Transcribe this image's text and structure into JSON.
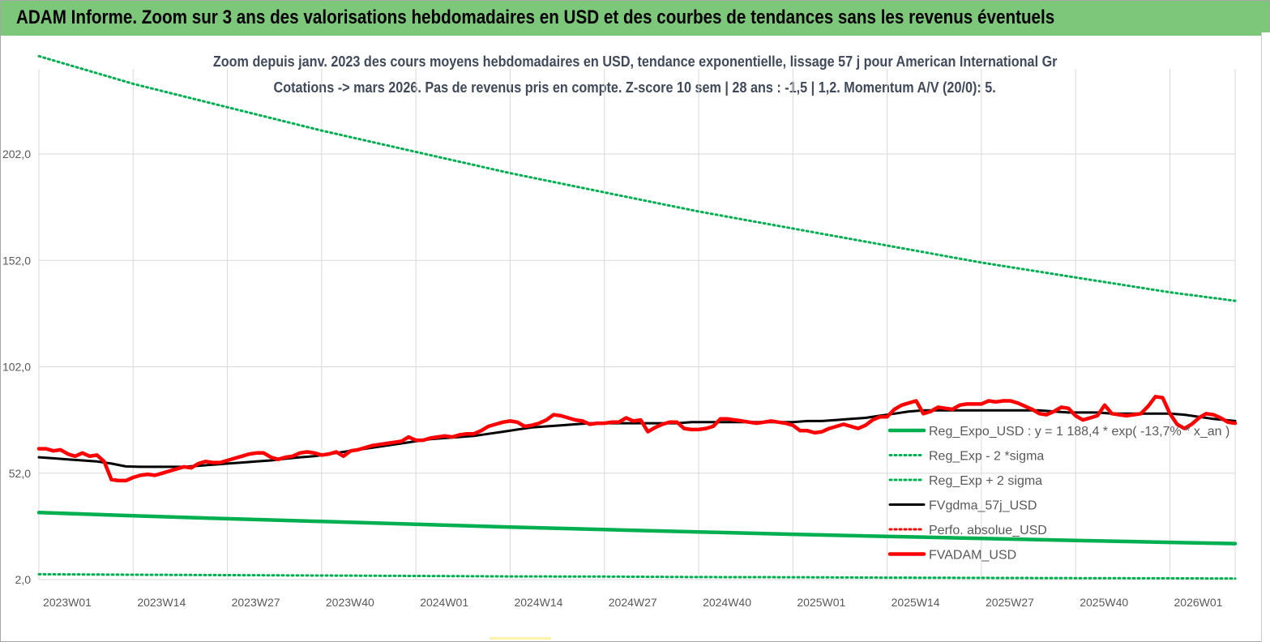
{
  "banner": {
    "title": "ADAM Informe. Zoom sur 3 ans des valorisations hebdomadaires en USD et des courbes de tendances sans les revenus éventuels"
  },
  "chart": {
    "title_line1": "Zoom depuis janv. 2023 des cours moyens hebdomadaires en USD, tendance exponentielle, lissage 57 j pour American International Gr",
    "title_line2": "Cotations -> mars 2026. Pas de revenus pris en compte. Z-score 10 sem | 28 ans : -1,5 | 1,2. Momentum A/V (20/0): 5."
  },
  "colors": {
    "banner": "#7dc77a",
    "reg_expo": "#00b050",
    "fvgdma": "#000000",
    "fvadam": "#ff0000",
    "perfo": "#ff0000",
    "grid": "#d9d9d9"
  },
  "chart_data": {
    "type": "line",
    "ylim": [
      2,
      242
    ],
    "y_ticks": [
      "2,0",
      "52,0",
      "102,0",
      "152,0",
      "202,0"
    ],
    "y_tick_values": [
      2,
      52,
      102,
      152,
      202
    ],
    "x_ticks": [
      "2023W01",
      "2023W14",
      "2023W27",
      "2023W40",
      "2024W01",
      "2024W14",
      "2024W27",
      "2024W40",
      "2025W01",
      "2025W14",
      "2025W27",
      "2025W40",
      "2026W01"
    ],
    "grid": true,
    "legend_position": "right",
    "series": [
      {
        "name": "Reg_Expo_USD : y = 1 188,4 * exp( -13,7% * x_an )",
        "style": "solid-thick",
        "color": "#00b050",
        "x": [
          0,
          13,
          26,
          39,
          52,
          65,
          78,
          91,
          104,
          117,
          130,
          143,
          156,
          165
        ],
        "values": [
          33.5,
          32.0,
          30.6,
          29.3,
          28.0,
          26.7,
          25.5,
          24.4,
          23.3,
          22.3,
          21.3,
          20.4,
          19.5,
          18.9
        ]
      },
      {
        "name": "Reg_Exp - 2 *sigma",
        "style": "dotted",
        "color": "#00b050",
        "x": [
          0,
          13,
          26,
          39,
          52,
          65,
          78,
          91,
          104,
          117,
          130,
          143,
          156,
          165
        ],
        "values": [
          4.5,
          4.3,
          4.1,
          3.9,
          3.7,
          3.5,
          3.4,
          3.2,
          3.1,
          2.9,
          2.8,
          2.7,
          2.6,
          2.5
        ]
      },
      {
        "name": "Reg_Exp + 2 sigma",
        "style": "dotted",
        "color": "#00b050",
        "x": [
          0,
          13,
          26,
          39,
          52,
          65,
          78,
          91,
          104,
          117,
          130,
          143,
          156,
          165
        ],
        "values": [
          248,
          235,
          224,
          213,
          203,
          193,
          184,
          175,
          167,
          159,
          151,
          144,
          137,
          133
        ]
      },
      {
        "name": "FVgdma_57j_USD",
        "style": "solid",
        "color": "#000000",
        "x": [
          0,
          2,
          4,
          6,
          8,
          10,
          12,
          14,
          16,
          18,
          20,
          22,
          24,
          26,
          28,
          30,
          32,
          34,
          36,
          38,
          40,
          42,
          44,
          46,
          48,
          50,
          52,
          54,
          56,
          58,
          60,
          62,
          64,
          66,
          68,
          70,
          72,
          74,
          76,
          78,
          80,
          82,
          84,
          86,
          88,
          90,
          92,
          94,
          96,
          98,
          100,
          102,
          104,
          106,
          108,
          110,
          112,
          114,
          116,
          118,
          120,
          122,
          124,
          126,
          128,
          130,
          132,
          134,
          136,
          138,
          140,
          142,
          144,
          146,
          148,
          150,
          152,
          154,
          156,
          158,
          160,
          162,
          165
        ],
        "values": [
          59.5,
          59,
          58.5,
          58,
          57.5,
          56.5,
          55.2,
          55,
          55,
          55,
          55,
          55.5,
          56,
          56.5,
          57,
          57.5,
          58,
          58.8,
          59.5,
          60,
          61,
          62,
          63,
          64,
          65,
          66,
          67,
          68,
          68.5,
          69,
          69.5,
          70.5,
          71.5,
          72.5,
          73.5,
          74,
          74.5,
          75,
          75.5,
          75.5,
          75.5,
          75.5,
          75.5,
          75.5,
          75.5,
          76,
          76,
          76,
          76,
          76,
          76,
          76,
          76,
          76.5,
          76.5,
          77,
          77.5,
          78,
          79,
          80,
          81,
          81.5,
          81.5,
          81.5,
          81.5,
          81.5,
          81.5,
          81.5,
          81.5,
          81.5,
          81,
          80.5,
          80.5,
          80.5,
          80,
          80,
          80,
          80,
          80,
          79.5,
          78.5,
          77.5,
          76.5
        ]
      },
      {
        "name": "Perfo. absolue_USD",
        "style": "dotted",
        "color": "#ff0000",
        "x": [],
        "values": []
      },
      {
        "name": "FVADAM_USD",
        "style": "solid-thick",
        "color": "#ff0000",
        "x": [
          0,
          1,
          2,
          3,
          4,
          5,
          6,
          7,
          8,
          9,
          10,
          11,
          12,
          13,
          14,
          15,
          16,
          17,
          18,
          19,
          20,
          21,
          22,
          23,
          24,
          25,
          26,
          27,
          28,
          29,
          30,
          31,
          32,
          33,
          34,
          35,
          36,
          37,
          38,
          39,
          40,
          41,
          42,
          43,
          44,
          45,
          46,
          47,
          48,
          49,
          50,
          51,
          52,
          53,
          54,
          55,
          56,
          57,
          58,
          59,
          60,
          61,
          62,
          63,
          64,
          65,
          66,
          67,
          68,
          69,
          70,
          71,
          72,
          73,
          74,
          75,
          76,
          77,
          78,
          79,
          80,
          81,
          82,
          83,
          84,
          85,
          86,
          87,
          88,
          89,
          90,
          91,
          92,
          93,
          94,
          95,
          96,
          97,
          98,
          99,
          100,
          101,
          102,
          103,
          104,
          105,
          106,
          107,
          108,
          109,
          110,
          111,
          112,
          113,
          114,
          115,
          116,
          117,
          118,
          119,
          120,
          121,
          122,
          123,
          124,
          125,
          126,
          127,
          128,
          129,
          130,
          131,
          132,
          133,
          134,
          135,
          136,
          137,
          138,
          139,
          140,
          141,
          142,
          143,
          144,
          145,
          146,
          147,
          148,
          149,
          150,
          151,
          152,
          153,
          154,
          155,
          156,
          157,
          158,
          159,
          160,
          161,
          162,
          163,
          164,
          165
        ],
        "values": [
          63.5,
          63.5,
          62.5,
          63,
          61,
          60,
          61.5,
          60,
          60.5,
          57.5,
          49,
          48.5,
          48.5,
          50,
          51,
          51.5,
          51,
          52,
          53,
          54,
          55,
          54.5,
          56.5,
          57.5,
          57,
          57,
          58,
          59,
          60,
          61,
          61.5,
          61.5,
          59.5,
          58.5,
          59.5,
          60,
          61.5,
          62,
          61.5,
          60.5,
          61,
          62,
          60,
          62.5,
          63,
          64,
          65,
          65.5,
          66,
          66.5,
          67,
          69,
          67.5,
          67.5,
          68.5,
          69,
          69.5,
          69,
          70,
          70.5,
          70.5,
          72,
          74,
          75,
          76,
          76.5,
          76,
          74,
          74.5,
          75.5,
          77,
          79.5,
          79,
          78,
          77,
          76.5,
          75,
          75.5,
          75.5,
          76,
          76,
          78,
          76.5,
          77,
          71.5,
          73.5,
          75,
          76,
          76,
          73,
          72.5,
          72.5,
          73,
          74,
          77.5,
          77.5,
          77,
          76.5,
          76,
          75.5,
          76,
          76.5,
          76,
          75.5,
          74.5,
          72,
          72,
          71,
          71.5,
          73,
          74,
          75,
          74,
          73,
          74.5,
          77,
          78.5,
          78.5,
          82,
          84,
          85,
          86,
          80,
          81,
          83,
          82.5,
          82,
          84,
          84.5,
          84.5,
          84.5,
          86,
          85.5,
          86,
          86,
          85,
          83.5,
          82,
          80,
          79.5,
          81,
          83,
          82.5,
          79,
          77,
          78,
          79,
          84,
          80,
          79.5,
          79,
          79.5,
          80,
          83.5,
          88,
          87.5,
          80,
          75,
          73,
          75,
          78,
          80,
          79.5,
          78,
          76,
          75.5
        ]
      }
    ]
  }
}
